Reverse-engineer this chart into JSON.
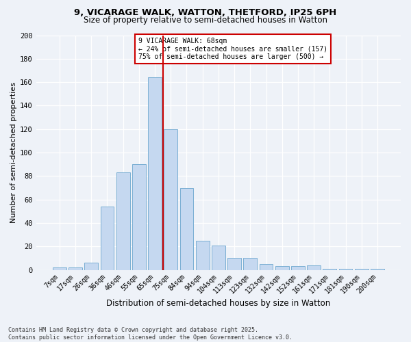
{
  "title1": "9, VICARAGE WALK, WATTON, THETFORD, IP25 6PH",
  "title2": "Size of property relative to semi-detached houses in Watton",
  "xlabel": "Distribution of semi-detached houses by size in Watton",
  "ylabel": "Number of semi-detached properties",
  "categories": [
    "7sqm",
    "17sqm",
    "26sqm",
    "36sqm",
    "46sqm",
    "55sqm",
    "65sqm",
    "75sqm",
    "84sqm",
    "94sqm",
    "104sqm",
    "113sqm",
    "123sqm",
    "132sqm",
    "142sqm",
    "152sqm",
    "161sqm",
    "171sqm",
    "181sqm",
    "190sqm",
    "200sqm"
  ],
  "values": [
    2,
    2,
    6,
    54,
    83,
    90,
    164,
    120,
    70,
    25,
    21,
    10,
    10,
    5,
    3,
    3,
    4,
    1,
    1,
    1,
    1
  ],
  "bar_color": "#c5d8f0",
  "bar_edge_color": "#7bafd4",
  "vline_x": 6.5,
  "vline_color": "#cc0000",
  "annotation_title": "9 VICARAGE WALK: 68sqm",
  "annotation_line1": "← 24% of semi-detached houses are smaller (157)",
  "annotation_line2": "75% of semi-detached houses are larger (500) →",
  "annotation_box_color": "#cc0000",
  "annotation_text_color": "#000000",
  "annotation_bg": "#ffffff",
  "ylim": [
    0,
    200
  ],
  "yticks": [
    0,
    20,
    40,
    60,
    80,
    100,
    120,
    140,
    160,
    180,
    200
  ],
  "footer": "Contains HM Land Registry data © Crown copyright and database right 2025.\nContains public sector information licensed under the Open Government Licence v3.0.",
  "bg_color": "#eef2f8",
  "plot_bg_color": "#eef2f8"
}
